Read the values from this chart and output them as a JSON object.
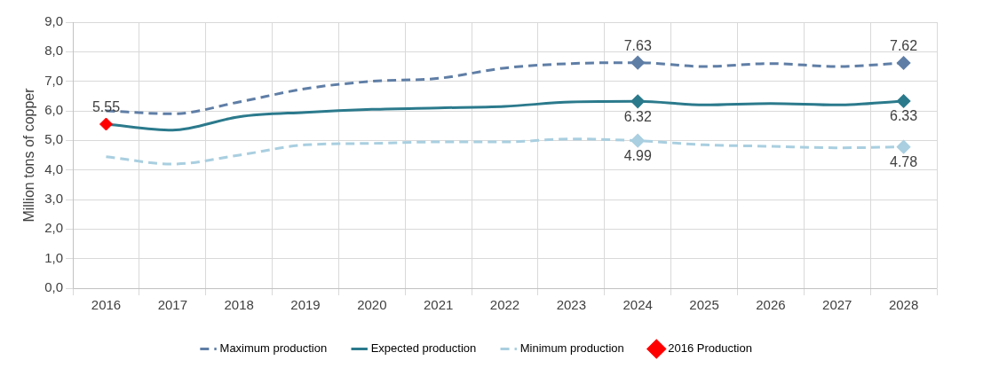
{
  "chart_data": {
    "type": "line",
    "ylabel": "Million tons of copper",
    "categories": [
      "2016",
      "2017",
      "2018",
      "2019",
      "2020",
      "2021",
      "2022",
      "2023",
      "2024",
      "2025",
      "2026",
      "2027",
      "2028"
    ],
    "series": [
      {
        "name": "Maximum production",
        "color": "#5f7ea6",
        "line_style": "dashed",
        "values": [
          6.0,
          5.9,
          6.3,
          6.75,
          7.0,
          7.1,
          7.45,
          7.6,
          7.63,
          7.5,
          7.6,
          7.5,
          7.62
        ],
        "value_labels": [
          null,
          null,
          null,
          null,
          null,
          null,
          null,
          null,
          "7.63",
          null,
          null,
          null,
          "7.62"
        ]
      },
      {
        "name": "Expected production",
        "color": "#2b7a8c",
        "line_style": "solid",
        "values": [
          5.55,
          5.35,
          5.8,
          5.95,
          6.05,
          6.1,
          6.15,
          6.3,
          6.32,
          6.2,
          6.25,
          6.2,
          6.33
        ],
        "value_labels": [
          null,
          null,
          null,
          null,
          null,
          null,
          null,
          null,
          "6.32",
          null,
          null,
          null,
          "6.33"
        ]
      },
      {
        "name": "Minimum production",
        "color": "#a9cfe0",
        "line_style": "dashed",
        "values": [
          4.45,
          4.2,
          4.5,
          4.85,
          4.9,
          4.95,
          4.95,
          5.05,
          4.99,
          4.85,
          4.8,
          4.75,
          4.78
        ],
        "value_labels": [
          null,
          null,
          null,
          null,
          null,
          null,
          null,
          null,
          "4.99",
          null,
          null,
          null,
          "4.78"
        ]
      },
      {
        "name": "2016 Production",
        "type": "scatter",
        "marker": "diamond",
        "color": "#ff0000",
        "values": [
          5.55,
          null,
          null,
          null,
          null,
          null,
          null,
          null,
          null,
          null,
          null,
          null,
          null
        ],
        "value_labels": [
          "5.55",
          null,
          null,
          null,
          null,
          null,
          null,
          null,
          null,
          null,
          null,
          null,
          null
        ]
      }
    ],
    "ylim": [
      0,
      9
    ],
    "yticks": [
      {
        "value": 0,
        "label": "0,0"
      },
      {
        "value": 1,
        "label": "1,0"
      },
      {
        "value": 2,
        "label": "2,0"
      },
      {
        "value": 3,
        "label": "3,0"
      },
      {
        "value": 4,
        "label": "4,0"
      },
      {
        "value": 5,
        "label": "5,0"
      },
      {
        "value": 6,
        "label": "6,0"
      },
      {
        "value": 7,
        "label": "7,0"
      },
      {
        "value": 8,
        "label": "8,0"
      },
      {
        "value": 9,
        "label": "9,0"
      }
    ],
    "grid": true,
    "legend": "bottom"
  }
}
